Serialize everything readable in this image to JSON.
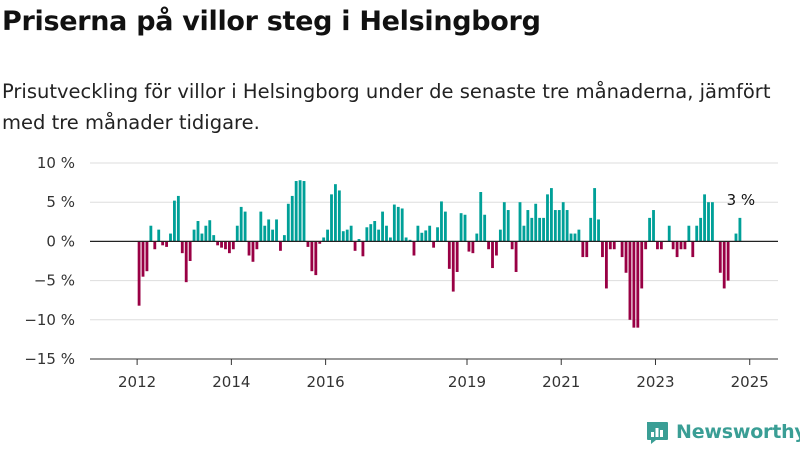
{
  "title": "Priserna på villor steg i Helsingborg",
  "subtitle": "Prisutveckling för villor i Helsingborg under de senaste tre månaderna, jämfört med tre månader tidigare.",
  "brand": {
    "name": "Newsworthy",
    "icon": "newsworthy-logo-icon",
    "color": "#3a9e95"
  },
  "colors": {
    "positive": "#00a098",
    "negative": "#990044",
    "grid": "#dddddd",
    "zero_line": "#222222"
  },
  "chart_data": {
    "type": "bar",
    "title": "Priserna på villor steg i Helsingborg",
    "ylim": [
      -15,
      10
    ],
    "y_ticks": [
      10,
      5,
      0,
      -5,
      -10,
      -15
    ],
    "y_tick_labels": [
      "10 %",
      "5 %",
      "0 %",
      "−5 %",
      "−10 %",
      "−15 %"
    ],
    "x_range": [
      2011.0,
      2025.6
    ],
    "x_ticks": [
      2012,
      2014,
      2016,
      2019,
      2021,
      2023,
      2025
    ],
    "x_tick_labels": [
      "2012",
      "2014",
      "2016",
      "2019",
      "2021",
      "2023",
      "2025"
    ],
    "grid": true,
    "legend": "none",
    "last_value_label": "3 %",
    "series": [
      {
        "start": "2012-01",
        "frequency": "monthly",
        "values": [
          -8.2,
          -4.5,
          -3.8,
          2.0,
          -1.0,
          1.5,
          -0.5,
          -0.7,
          1.0,
          5.2,
          5.8,
          -1.5,
          -5.2,
          -2.5,
          1.5,
          2.6,
          1.0,
          2.0,
          2.7,
          0.8,
          -0.5,
          -0.8,
          -1.0,
          -1.5,
          -1.0,
          2.0,
          4.4,
          3.8,
          -1.8,
          -2.6,
          -1.0,
          3.8,
          2.0,
          2.8,
          1.5,
          2.8,
          -1.2,
          0.8,
          4.8,
          5.8,
          7.7,
          7.8,
          7.7,
          -0.7,
          -3.8,
          -4.3,
          -0.3,
          0.5,
          1.5,
          6.0,
          7.3,
          6.5,
          1.3,
          1.5,
          2.0,
          -1.2,
          0.3,
          -1.9,
          1.8,
          2.2,
          2.6,
          1.5,
          3.8,
          2.0,
          0.5,
          4.7,
          4.4,
          4.2,
          0.5,
          0.2,
          -1.8,
          2.0,
          1.1,
          1.4,
          2.0,
          -0.8,
          1.8,
          5.1,
          3.8,
          -3.5,
          -6.4,
          -3.9,
          3.6,
          3.4,
          -1.3,
          -1.5,
          1.0,
          6.3,
          3.4,
          -1.0,
          -3.4,
          -1.8,
          1.5,
          5.0,
          4.0,
          -1.0,
          -3.9,
          5.0,
          2.0,
          4.0,
          3.0,
          4.8,
          3.0,
          3.0,
          6.0,
          6.8,
          4.0,
          4.0,
          5.0,
          4.0,
          1.0,
          1.0,
          1.5,
          -2.0,
          -2.0,
          3.0,
          6.8,
          2.8,
          -2.0,
          -6.0,
          -1.0,
          -1.0,
          0.0,
          -2.0,
          -4.0,
          -10.0,
          -11.0,
          -11.0,
          -6.0,
          -1.0,
          3.0,
          4.0,
          -1.0,
          -1.0,
          0.0,
          2.0,
          -1.0,
          -2.0,
          -1.0,
          -1.0,
          2.0,
          -2.0,
          2.0,
          3.0,
          6.0,
          5.0,
          5.0,
          0.0,
          -4.0,
          -6.0,
          -5.0,
          0.0,
          1.0,
          3.0
        ]
      }
    ]
  }
}
